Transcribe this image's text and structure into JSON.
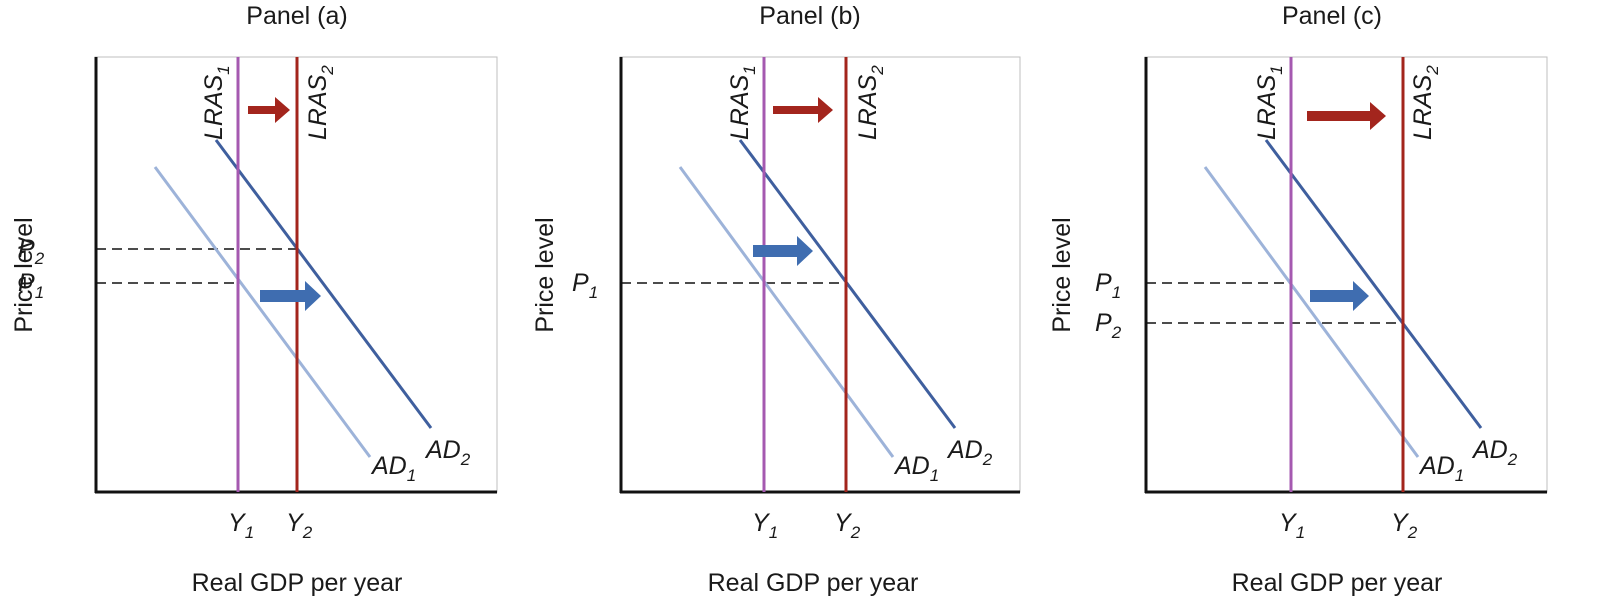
{
  "colors": {
    "lras1": "#a559b0",
    "lras2": "#a3251d",
    "ad1": "#9db3d9",
    "ad2": "#3f5f9e",
    "right_arrow": "#a3251d",
    "shift_arrow": "#3f6db0",
    "axes": "#111111",
    "dash": "#111111"
  },
  "panels": [
    {
      "title": "Panel (a)",
      "x_label": "Real GDP per year",
      "y_label": "Price level",
      "lras1": {
        "base": "LRAS",
        "sub": "1"
      },
      "lras2": {
        "base": "LRAS",
        "sub": "2"
      },
      "ad1": {
        "base": "AD",
        "sub": "1"
      },
      "ad2": {
        "base": "AD",
        "sub": "2"
      },
      "y1": {
        "base": "Y",
        "sub": "1"
      },
      "y2": {
        "base": "Y",
        "sub": "2"
      },
      "price_marks": [
        {
          "base": "P",
          "sub": "2"
        },
        {
          "base": "P",
          "sub": "1"
        }
      ]
    },
    {
      "title": "Panel (b)",
      "x_label": "Real GDP per year",
      "y_label": "Price level",
      "lras1": {
        "base": "LRAS",
        "sub": "1"
      },
      "lras2": {
        "base": "LRAS",
        "sub": "2"
      },
      "ad1": {
        "base": "AD",
        "sub": "1"
      },
      "ad2": {
        "base": "AD",
        "sub": "2"
      },
      "y1": {
        "base": "Y",
        "sub": "1"
      },
      "y2": {
        "base": "Y",
        "sub": "2"
      },
      "price_marks": [
        {
          "base": "P",
          "sub": "1"
        }
      ]
    },
    {
      "title": "Panel (c)",
      "x_label": "Real GDP per year",
      "y_label": "Price level",
      "lras1": {
        "base": "LRAS",
        "sub": "1"
      },
      "lras2": {
        "base": "LRAS",
        "sub": "2"
      },
      "ad1": {
        "base": "AD",
        "sub": "1"
      },
      "ad2": {
        "base": "AD",
        "sub": "2"
      },
      "y1": {
        "base": "Y",
        "sub": "1"
      },
      "y2": {
        "base": "Y",
        "sub": "2"
      },
      "price_marks": [
        {
          "base": "P",
          "sub": "1"
        },
        {
          "base": "P",
          "sub": "2"
        }
      ]
    }
  ]
}
